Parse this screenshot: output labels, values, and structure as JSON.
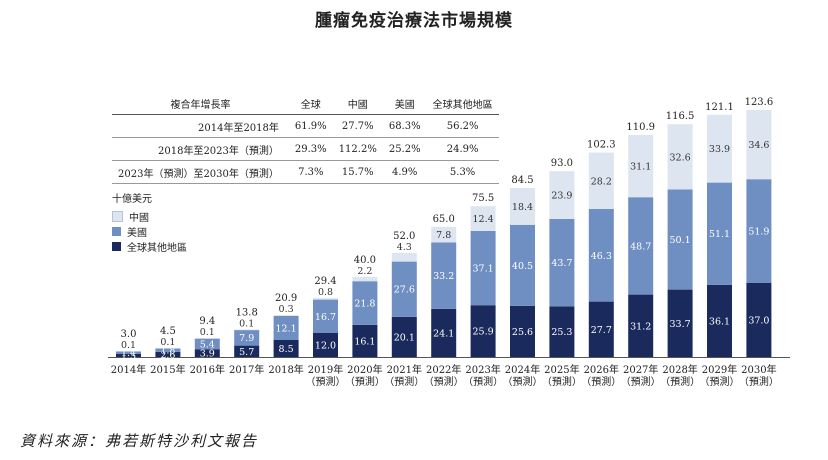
{
  "title": "腫瘤免疫治療法市場規模",
  "growth_table": {
    "headers": [
      "複合年增長率",
      "全球",
      "中國",
      "美國",
      "全球其他地區"
    ],
    "rows": [
      [
        "2014年至2018年",
        "61.9%",
        "27.7%",
        "68.3%",
        "56.2%"
      ],
      [
        "2018年至2023年（預測）",
        "29.3%",
        "112.2%",
        "25.2%",
        "24.9%"
      ],
      [
        "2023年（預測）至2030年（預測）",
        "7.3%",
        "15.7%",
        "4.9%",
        "5.3%"
      ]
    ]
  },
  "legend": {
    "unit": "十億美元",
    "items": [
      "中國",
      "美國",
      "全球其他地區"
    ]
  },
  "source": "資料來源：弗若斯特沙利文報告",
  "colors": {
    "china": "#dde5f0",
    "us": "#6f8fc3",
    "rest": "#1b2a5c"
  },
  "chart_data": {
    "type": "bar",
    "stacked": true,
    "title": "腫瘤免疫治療法市場規模",
    "ylabel": "十億美元",
    "ylim": [
      0,
      130
    ],
    "categories": [
      "2014年",
      "2015年",
      "2016年",
      "2017年",
      "2018年",
      "2019年（預測）",
      "2020年（預測）",
      "2021年（預測）",
      "2022年（預測）",
      "2023年（預測）",
      "2024年（預測）",
      "2025年（預測）",
      "2026年（預測）",
      "2027年（預測）",
      "2028年（預測）",
      "2029年（預測）",
      "2030年（預測）"
    ],
    "tick_labels": [
      [
        "2014年"
      ],
      [
        "2015年"
      ],
      [
        "2016年"
      ],
      [
        "2017年"
      ],
      [
        "2018年"
      ],
      [
        "2019年",
        "（預測）"
      ],
      [
        "2020年",
        "（預測）"
      ],
      [
        "2021年",
        "（預測）"
      ],
      [
        "2022年",
        "（預測）"
      ],
      [
        "2023年",
        "（預測）"
      ],
      [
        "2024年",
        "（預測）"
      ],
      [
        "2025年",
        "（預測）"
      ],
      [
        "2026年",
        "（預測）"
      ],
      [
        "2027年",
        "（預測）"
      ],
      [
        "2028年",
        "（預測）"
      ],
      [
        "2029年",
        "（預測）"
      ],
      [
        "2030年",
        "（預測）"
      ]
    ],
    "series": [
      {
        "name": "全球其他地區",
        "values": [
          1.5,
          2.6,
          3.9,
          5.7,
          8.5,
          12.0,
          16.1,
          20.1,
          24.1,
          25.9,
          25.6,
          25.3,
          27.7,
          31.2,
          33.7,
          36.1,
          37.0
        ]
      },
      {
        "name": "美國",
        "values": [
          1.4,
          1.8,
          5.4,
          7.9,
          12.1,
          16.7,
          21.8,
          27.6,
          33.2,
          37.1,
          40.5,
          43.7,
          46.3,
          48.7,
          50.1,
          51.1,
          51.9
        ]
      },
      {
        "name": "中國",
        "values": [
          0.1,
          0.1,
          0.1,
          0.1,
          0.3,
          0.8,
          2.2,
          4.3,
          7.8,
          12.4,
          18.4,
          23.9,
          28.2,
          31.1,
          32.6,
          33.9,
          34.6
        ]
      }
    ],
    "segment_labels": [
      [
        "1.5",
        "2.6",
        "3.9",
        "5.7",
        "8.5",
        "12.0",
        "16.1",
        "20.1",
        "24.1",
        "25.9",
        "25.6",
        "25.3",
        "27.7",
        "31.2",
        "33.7",
        "36.1",
        "37.0"
      ],
      [
        "1.4",
        "1.8",
        "5.4",
        "7.9",
        "12.1",
        "16.7",
        "21.8",
        "27.6",
        "33.2",
        "37.1",
        "40.5",
        "43.7",
        "46.3",
        "48.7",
        "50.1",
        "51.1",
        "51.9"
      ],
      [
        "0.1",
        "0.1",
        "0.1",
        "0.1",
        "0.3",
        "0.8",
        "2.2",
        "4.3",
        "7.8",
        "12.4",
        "18.4",
        "23.9",
        "28.2",
        "31.1",
        "32.6",
        "33.9",
        "34.6"
      ]
    ],
    "totals": [
      "3.0",
      "4.5",
      "9.4",
      "13.8",
      "20.9",
      "29.4",
      "40.0",
      "52.0",
      "65.0",
      "75.5",
      "84.5",
      "93.0",
      "102.3",
      "110.9",
      "116.5",
      "121.1",
      "123.6"
    ]
  }
}
